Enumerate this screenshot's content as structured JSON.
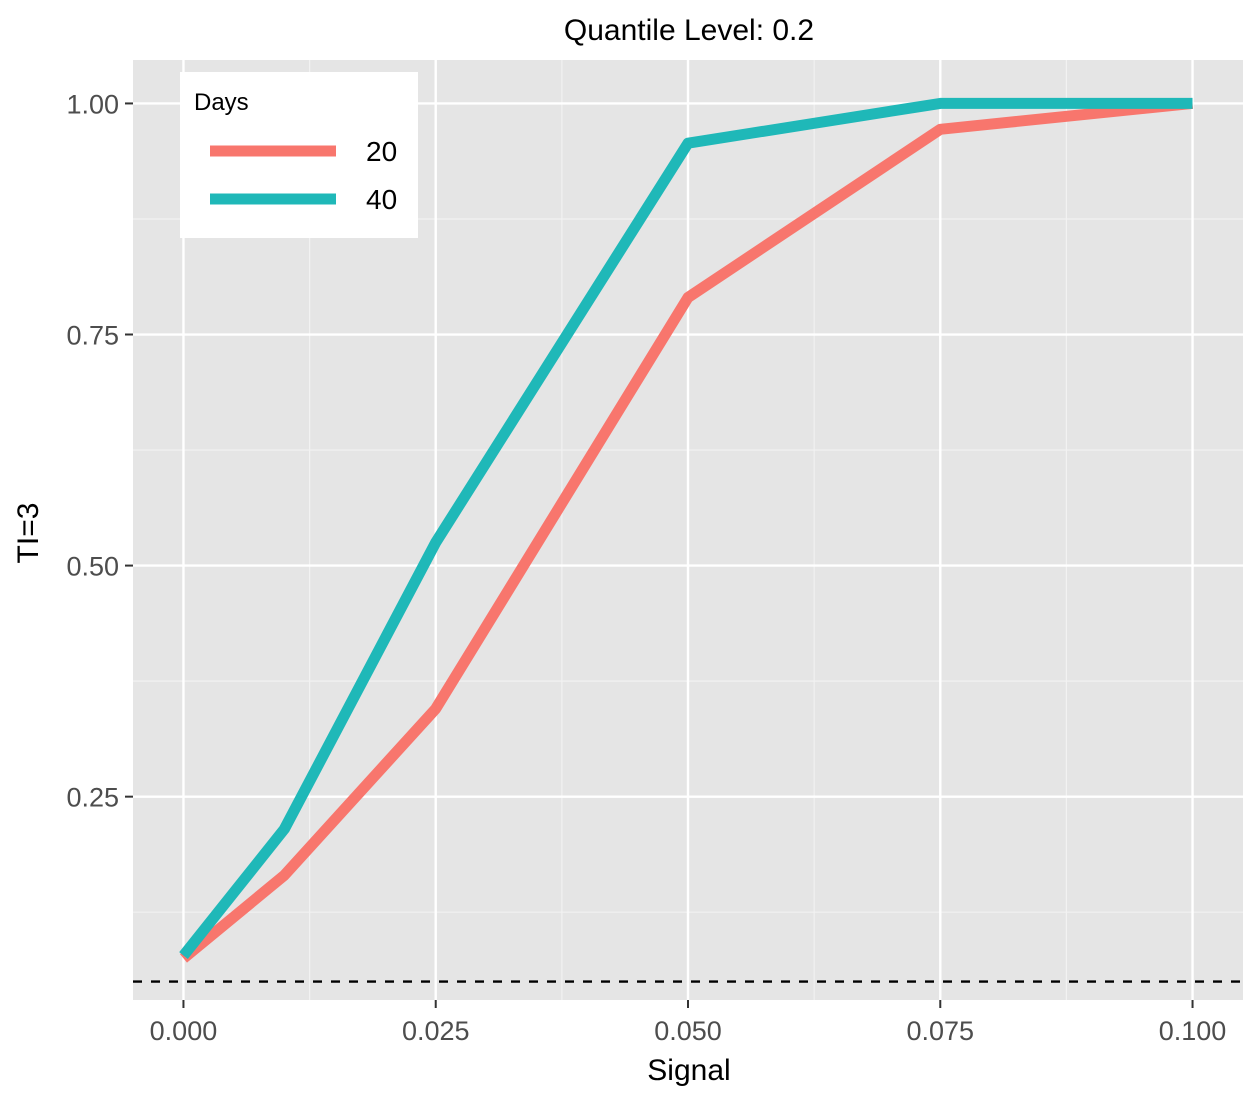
{
  "chart_data": {
    "type": "line",
    "title": "Quantile Level: 0.2",
    "xlabel": "Signal",
    "ylabel": "TI=3",
    "x": [
      0.0,
      0.01,
      0.025,
      0.05,
      0.075,
      0.1
    ],
    "xlim": [
      -0.005,
      0.105
    ],
    "ylim": [
      0.03,
      1.047
    ],
    "x_ticks": [
      0.0,
      0.025,
      0.05,
      0.075,
      0.1
    ],
    "x_tick_labels": [
      "0.000",
      "0.025",
      "0.050",
      "0.075",
      "0.100"
    ],
    "y_ticks": [
      0.25,
      0.5,
      0.75,
      1.0
    ],
    "y_tick_labels": [
      "0.25",
      "0.50",
      "0.75",
      "1.00"
    ],
    "grid": true,
    "legend": {
      "title": "Days",
      "position": "top-left"
    },
    "series": [
      {
        "name": "20",
        "color": "#F8766D",
        "values": [
          0.075,
          0.165,
          0.345,
          0.79,
          0.972,
          1.0
        ]
      },
      {
        "name": "40",
        "color": "#1FB8B8",
        "values": [
          0.078,
          0.215,
          0.525,
          0.957,
          1.0,
          1.0
        ]
      }
    ],
    "reference_line": {
      "y": 0.05,
      "style": "dashed",
      "color": "#000000"
    }
  }
}
